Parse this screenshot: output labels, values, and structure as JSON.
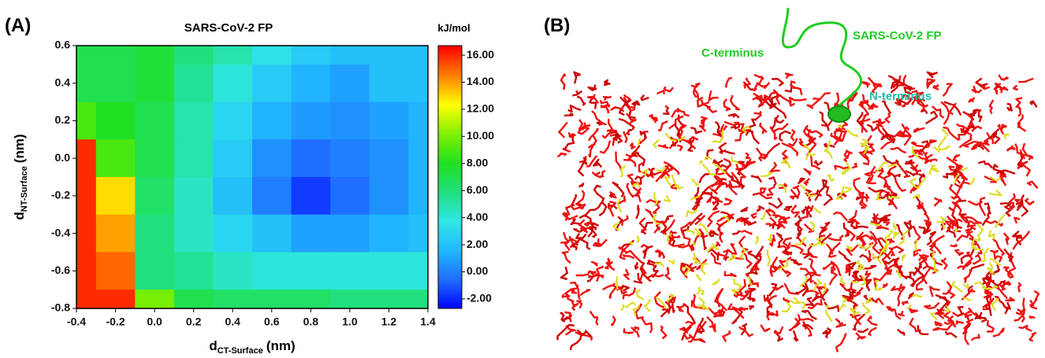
{
  "chart_data": {
    "type": "contour",
    "panel_label": "(A)",
    "title": "SARS-CoV-2 FP",
    "colorbar_title": "kJ/mol",
    "x_label": {
      "main": "d",
      "sub": "CT-Surface",
      "unit": "(nm)"
    },
    "y_label": {
      "main": "d",
      "sub": "NT-Surface",
      "unit": "(nm)"
    },
    "x": [
      -0.4,
      -0.2,
      0.0,
      0.2,
      0.4,
      0.6,
      0.8,
      1.0,
      1.2,
      1.4
    ],
    "y": [
      0.6,
      0.4,
      0.2,
      0.0,
      -0.2,
      -0.4,
      -0.6,
      -0.8
    ],
    "z": [
      [
        7,
        7,
        7.5,
        6,
        5,
        3.5,
        2.5,
        2,
        2,
        2
      ],
      [
        7,
        7,
        7.5,
        5.5,
        4,
        2.5,
        1.5,
        1,
        2,
        2
      ],
      [
        9,
        8,
        7,
        5,
        3,
        1.5,
        0.8,
        0.5,
        1,
        1.5
      ],
      [
        16,
        9,
        7,
        5,
        2.5,
        0.5,
        -0.5,
        0,
        0.5,
        1.5
      ],
      [
        16,
        13,
        6.5,
        4.5,
        2,
        0,
        -1.5,
        -0.5,
        0.5,
        1.5
      ],
      [
        16,
        14,
        6,
        4.5,
        3,
        2,
        1,
        1,
        1.5,
        2
      ],
      [
        16,
        15,
        6,
        5.5,
        4.5,
        4,
        4,
        4,
        4,
        4
      ],
      [
        16,
        16,
        10,
        7,
        6.5,
        6.5,
        6.5,
        6,
        6,
        6
      ]
    ],
    "xlim": [
      -0.4,
      1.4
    ],
    "ylim": [
      -0.8,
      0.6
    ],
    "xticks": [
      -0.4,
      -0.2,
      {
        "value": 0,
        "label": "0.0"
      },
      0.2,
      0.4,
      0.6,
      0.8,
      {
        "value": 1,
        "label": "1.0"
      },
      1.2,
      1.4
    ],
    "yticks": [
      0.6,
      0.4,
      0.2,
      {
        "value": 0,
        "label": "0.0"
      },
      -0.2,
      -0.4,
      -0.6,
      -0.8
    ],
    "clim": [
      -2.7,
      16.7
    ],
    "cticks": [
      {
        "value": 16,
        "label": "16.00"
      },
      {
        "value": 14,
        "label": "14.00"
      },
      {
        "value": 12,
        "label": "12.00"
      },
      {
        "value": 10,
        "label": "10.00"
      },
      {
        "value": 8,
        "label": "8.00"
      },
      {
        "value": 6,
        "label": "6.00"
      },
      {
        "value": 4,
        "label": "4.00"
      },
      {
        "value": 2,
        "label": "2.00"
      },
      {
        "value": 0,
        "label": "0.00"
      },
      {
        "value": -2,
        "label": "-2.00"
      }
    ],
    "colormap": [
      "#0000ff",
      "#1e6cff",
      "#20b8ff",
      "#30e6e6",
      "#20e080",
      "#20e020",
      "#80f000",
      "#ffff00",
      "#ff8000",
      "#ff0000"
    ]
  },
  "panel_b": {
    "label": "(B)",
    "c_terminus": "C-terminus",
    "peptide": "SARS-CoV-2 FP",
    "n_terminus": "N-terminus"
  }
}
